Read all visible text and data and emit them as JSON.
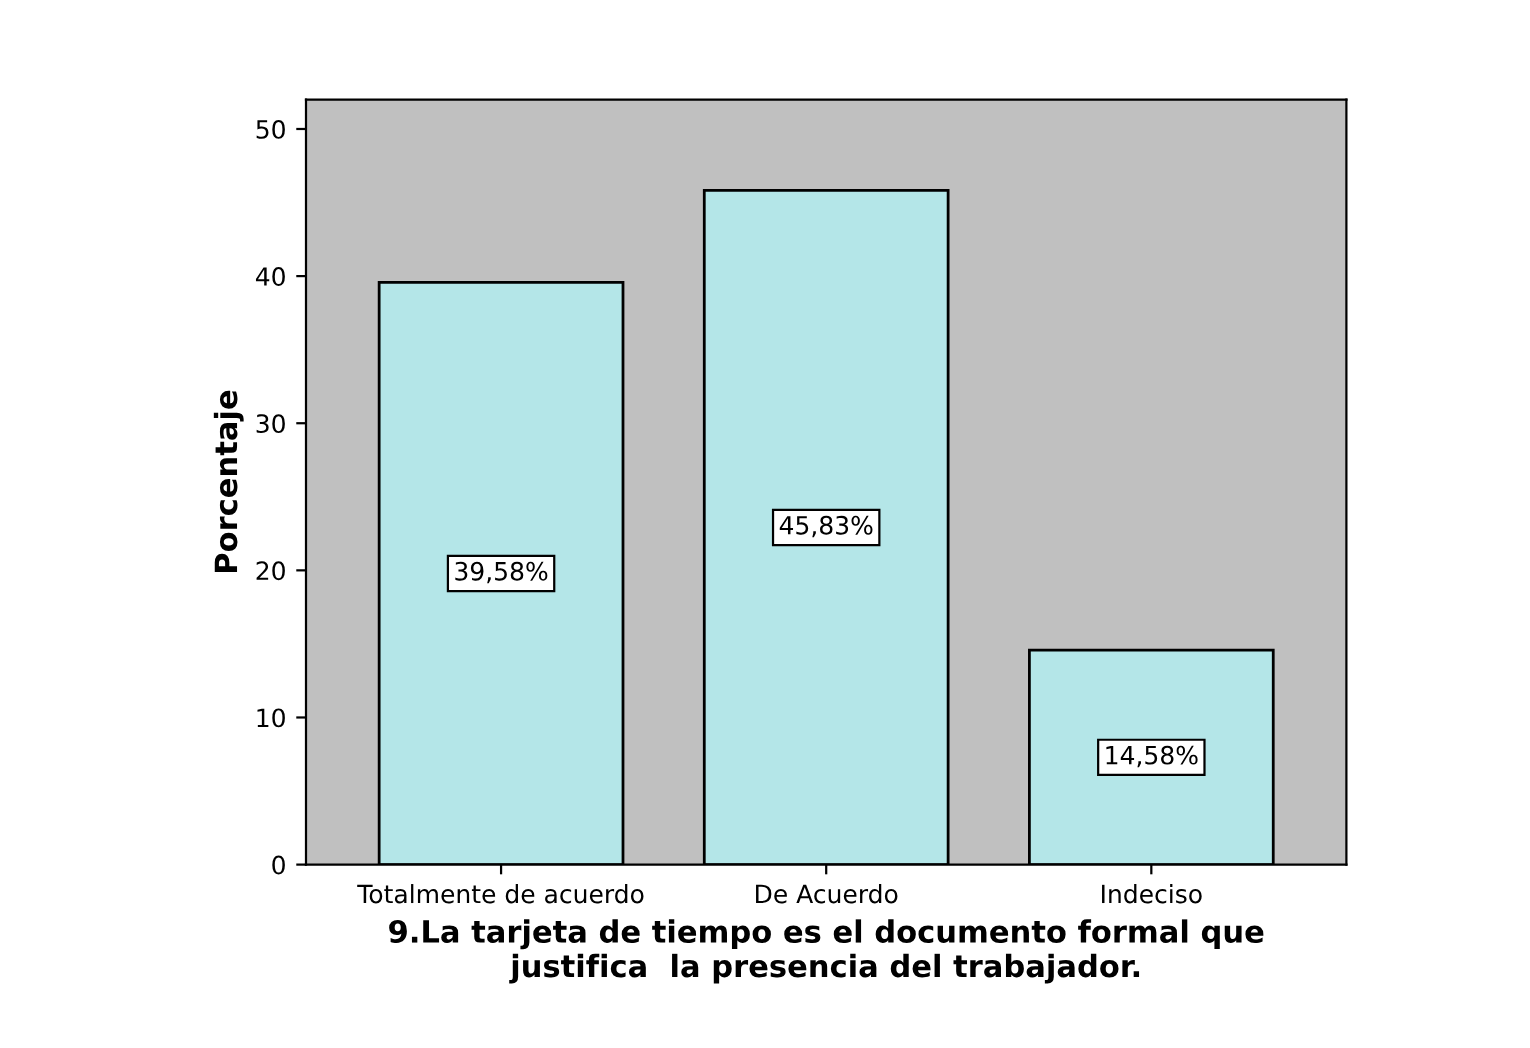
{
  "chart_data": {
    "type": "bar",
    "xlabel": "9.La tarjeta de tiempo es el documento formal que\njustifica  la presencia del trabajador.",
    "ylabel": "Porcentaje",
    "categories": [
      "Totalmente de acuerdo",
      "De Acuerdo",
      "Indeciso"
    ],
    "values": [
      39.58,
      45.83,
      14.58
    ],
    "value_labels": [
      "39,58%",
      "45,83%",
      "14,58%"
    ],
    "color": "#b4e6e8",
    "ylim": [
      0,
      52
    ],
    "yticks": [
      0,
      10,
      20,
      30,
      40,
      50
    ],
    "grid": false,
    "legend": false
  }
}
